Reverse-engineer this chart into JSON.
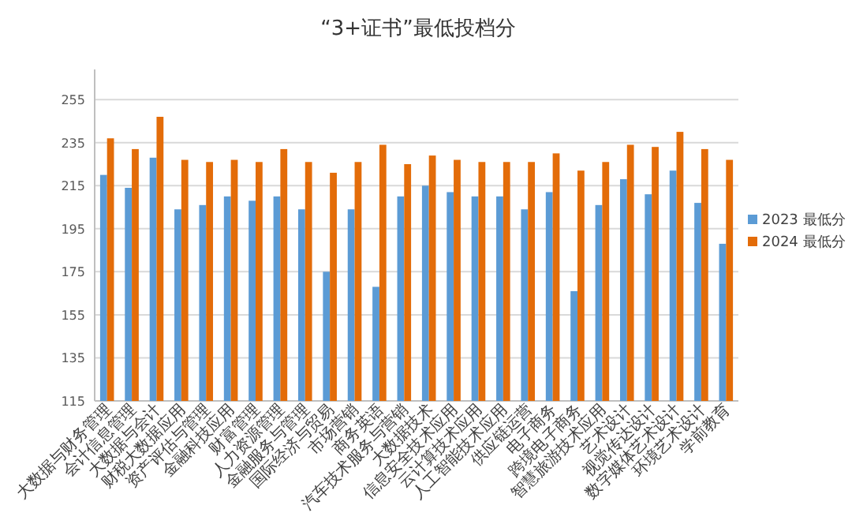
{
  "chart_data": {
    "type": "bar",
    "title": "“3+证书”最低投档分",
    "categories": [
      "大数据与财务管理",
      "会计信息管理",
      "大数据与会计",
      "财税大数据应用",
      "资产评估与管理",
      "金融科技应用",
      "财富管理",
      "人力资源管理",
      "金融服务与管理",
      "国际经济与贸易",
      "市场营销",
      "商务英语",
      "汽车技术服务与营销",
      "大数据技术",
      "信息安全技术应用",
      "云计算技术应用",
      "人工智能技术应用",
      "供应链运营",
      "电子商务",
      "跨境电子商务",
      "智慧旅游技术应用",
      "艺术设计",
      "视觉传达设计",
      "数字媒体艺术设计",
      "环境艺术设计",
      "学前教育"
    ],
    "series": [
      {
        "name": "2023 最低分",
        "color": "#5b9bd5",
        "values": [
          220,
          214,
          228,
          204,
          206,
          210,
          208,
          210,
          204,
          175,
          204,
          168,
          210,
          215,
          212,
          210,
          210,
          204,
          212,
          166,
          206,
          218,
          211,
          222,
          207,
          188
        ]
      },
      {
        "name": "2024 最低分",
        "color": "#e36c09",
        "values": [
          237,
          232,
          247,
          227,
          226,
          227,
          226,
          232,
          226,
          221,
          226,
          234,
          225,
          229,
          227,
          226,
          226,
          226,
          230,
          222,
          226,
          234,
          233,
          240,
          232,
          227
        ]
      }
    ],
    "ylim": [
      115,
      269
    ],
    "yticks": [
      115,
      135,
      155,
      175,
      195,
      215,
      235,
      255
    ],
    "grid": "y",
    "legend": "right"
  }
}
